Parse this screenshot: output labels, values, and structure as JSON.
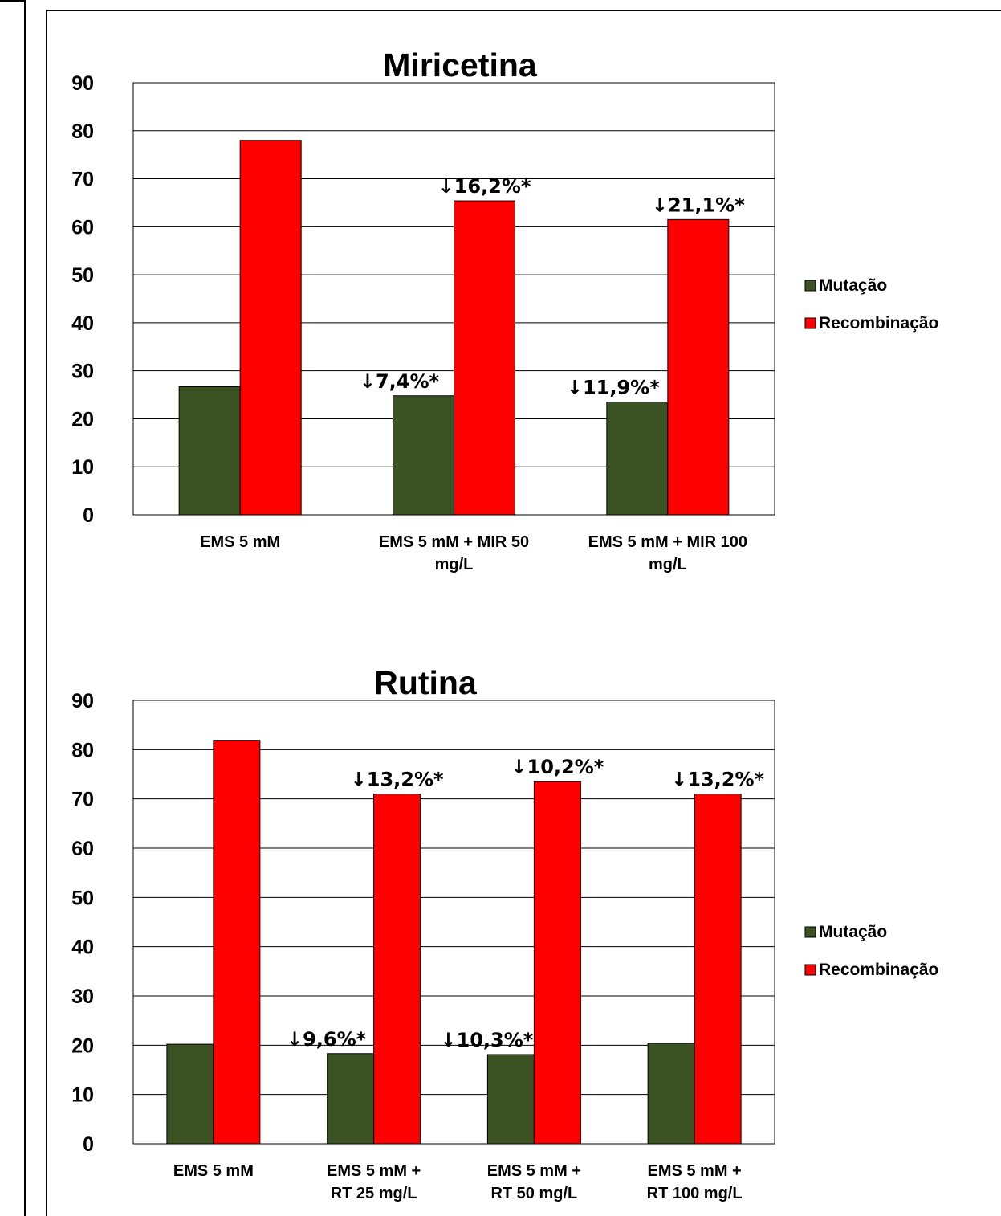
{
  "chart_data": [
    {
      "type": "bar",
      "title": "Miricetina",
      "categories": [
        "EMS 5 mM",
        "EMS 5 mM + MIR 50 mg/L",
        "EMS 5 mM + MIR 100 mg/L"
      ],
      "category_lines": [
        [
          "EMS 5 mM"
        ],
        [
          "EMS 5 mM + MIR 50",
          "mg/L"
        ],
        [
          "EMS 5 mM + MIR 100",
          "mg/L"
        ]
      ],
      "series": [
        {
          "name": "Mutação",
          "color": "#3b5323",
          "values": [
            26.7,
            24.8,
            23.5
          ],
          "annotations": [
            "",
            "↓7,4%*",
            "↓11,9%*"
          ]
        },
        {
          "name": "Recombinação",
          "color": "#ff0000",
          "values": [
            78,
            65.4,
            61.5
          ],
          "annotations": [
            "",
            "↓16,2%*",
            "↓21,1%*"
          ]
        }
      ],
      "xlabel": "",
      "ylabel": "",
      "ylim": [
        0,
        90
      ],
      "yticks": [
        0,
        10,
        20,
        30,
        40,
        50,
        60,
        70,
        80,
        90
      ],
      "grid": true,
      "legend_position": "right"
    },
    {
      "type": "bar",
      "title": "Rutina",
      "categories": [
        "EMS 5 mM",
        "EMS 5 mM + RT 25 mg/L",
        "EMS 5 mM + RT 50 mg/L",
        "EMS 5 mM + RT 100 mg/L"
      ],
      "category_lines": [
        [
          "EMS 5 mM"
        ],
        [
          "EMS 5 mM +",
          "RT 25 mg/L"
        ],
        [
          "EMS 5 mM +",
          "RT 50 mg/L"
        ],
        [
          "EMS 5 mM +",
          "RT 100 mg/L"
        ]
      ],
      "series": [
        {
          "name": "Mutação",
          "color": "#3b5323",
          "values": [
            20.2,
            18.3,
            18.1,
            20.4
          ],
          "annotations": [
            "",
            "↓9,6%*",
            "↓10,3%*",
            ""
          ]
        },
        {
          "name": "Recombinação",
          "color": "#ff0000",
          "values": [
            81.9,
            71,
            73.5,
            71
          ],
          "annotations": [
            "",
            "↓13,2%*",
            "↓10,2%*",
            "↓13,2%*"
          ]
        }
      ],
      "xlabel": "",
      "ylabel": "",
      "ylim": [
        0,
        90
      ],
      "yticks": [
        0,
        10,
        20,
        30,
        40,
        50,
        60,
        70,
        80,
        90
      ],
      "grid": true,
      "legend_position": "right"
    }
  ]
}
